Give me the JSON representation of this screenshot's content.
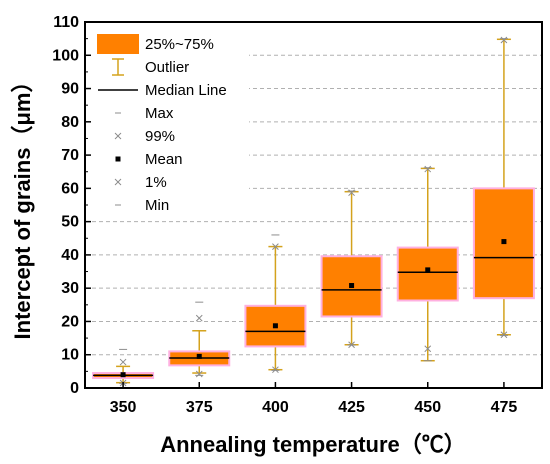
{
  "chart_data": {
    "type": "box",
    "xlabel": "Annealing temperature（℃）",
    "ylabel": "Intercept of grains（μm）",
    "ylim": [
      0,
      110
    ],
    "yticks": [
      0,
      10,
      20,
      30,
      40,
      50,
      60,
      70,
      80,
      90,
      100,
      110
    ],
    "grid": "horizontal dashed",
    "legend_position": "top-left",
    "colors": {
      "box_fill": "#ff8000",
      "box_border": "#ffb0e0",
      "whisker": "#d4a21c",
      "median": "#000000",
      "outlier": "#8c8c8c"
    },
    "legend": [
      {
        "label": "25%~75%",
        "symbol": "box"
      },
      {
        "label": "Outlier",
        "symbol": "whisker"
      },
      {
        "label": "Median Line",
        "symbol": "line"
      },
      {
        "label": "Max",
        "symbol": "dash"
      },
      {
        "label": "99%",
        "symbol": "x"
      },
      {
        "label": "Mean",
        "symbol": "square"
      },
      {
        "label": "1%",
        "symbol": "x"
      },
      {
        "label": "Min",
        "symbol": "dash"
      }
    ],
    "categories": [
      "350",
      "375",
      "400",
      "425",
      "450",
      "475"
    ],
    "boxes": [
      {
        "category": "350",
        "whisker_low": 1.6,
        "q1": 3.0,
        "median": 3.8,
        "q3": 4.5,
        "whisker_high": 6.5,
        "mean": 4.0,
        "p1": 1.5,
        "p99": 7.8,
        "min": 1.4,
        "max": 11.6
      },
      {
        "category": "375",
        "whisker_low": 4.5,
        "q1": 6.8,
        "median": 9.0,
        "q3": 11.0,
        "whisker_high": 17.2,
        "mean": 9.5,
        "p1": 4.2,
        "p99": 21.0,
        "min": 3.8,
        "max": 25.8
      },
      {
        "category": "400",
        "whisker_low": 5.5,
        "q1": 12.5,
        "median": 17.0,
        "q3": 24.7,
        "whisker_high": 42.5,
        "mean": 18.7,
        "p1": 5.5,
        "p99": 42.5,
        "min": 5.3,
        "max": 46.0
      },
      {
        "category": "425",
        "whisker_low": 13.0,
        "q1": 21.5,
        "median": 29.5,
        "q3": 39.6,
        "whisker_high": 59.0,
        "mean": 30.8,
        "p1": 13.0,
        "p99": 58.7,
        "min": 12.9,
        "max": 59.2
      },
      {
        "category": "450",
        "whisker_low": 8.2,
        "q1": 26.3,
        "median": 34.8,
        "q3": 42.2,
        "whisker_high": 66.0,
        "mean": 35.5,
        "p1": 11.8,
        "p99": 65.8,
        "min": 8.2,
        "max": 66.2
      },
      {
        "category": "475",
        "whisker_low": 16.0,
        "q1": 27.0,
        "median": 39.2,
        "q3": 60.0,
        "whisker_high": 104.8,
        "mean": 44.0,
        "p1": 16.0,
        "p99": 104.6,
        "min": 15.8,
        "max": 105.0
      }
    ]
  }
}
